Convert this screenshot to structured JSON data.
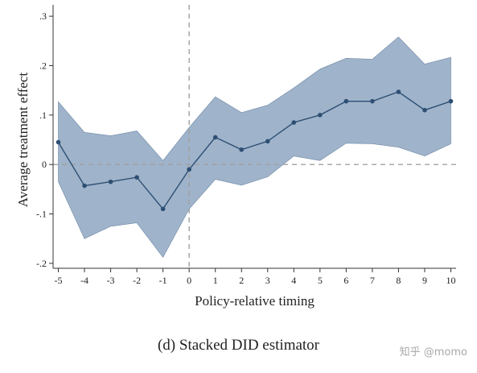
{
  "chart_data": {
    "type": "line",
    "xlabel": "Policy-relative timing",
    "ylabel": "Average treatment effect",
    "x": [
      -5,
      -4,
      -3,
      -2,
      -1,
      0,
      1,
      2,
      3,
      4,
      5,
      6,
      7,
      8,
      9,
      10
    ],
    "series": [
      {
        "values": [
          0.045,
          -0.043,
          -0.035,
          -0.026,
          -0.09,
          -0.01,
          0.055,
          0.03,
          0.047,
          0.085,
          0.1,
          0.128,
          0.128,
          0.147,
          0.11,
          0.128
        ],
        "ci_lower": [
          -0.035,
          -0.15,
          -0.125,
          -0.118,
          -0.188,
          -0.09,
          -0.03,
          -0.042,
          -0.025,
          0.017,
          0.008,
          0.043,
          0.042,
          0.035,
          0.017,
          0.042
        ],
        "ci_upper": [
          0.127,
          0.065,
          0.058,
          0.068,
          0.008,
          0.075,
          0.137,
          0.105,
          0.12,
          0.155,
          0.193,
          0.215,
          0.213,
          0.258,
          0.203,
          0.217
        ]
      }
    ],
    "yticks": [
      ".3",
      ".2",
      ".1",
      "0",
      "-.1",
      "-.2"
    ],
    "ytick_values": [
      0.3,
      0.2,
      0.1,
      0,
      -0.1,
      -0.2
    ],
    "xticks": [
      "-5",
      "-4",
      "-3",
      "-2",
      "-1",
      "0",
      "1",
      "2",
      "3",
      "4",
      "5",
      "6",
      "7",
      "8",
      "9",
      "10"
    ],
    "xlim": [
      -5.2,
      10.2
    ],
    "ylim": [
      -0.21,
      0.31
    ],
    "reference_lines": {
      "x": 0,
      "y": 0,
      "style": "dashed"
    },
    "colors": {
      "line": "#2d4f73",
      "band": "#7f9ab8",
      "reference": "#a0a0a0",
      "axis": "#333333"
    },
    "grid": false,
    "legend": "none"
  },
  "caption": "(d) Stacked DID estimator",
  "watermark": "知乎 @momo"
}
